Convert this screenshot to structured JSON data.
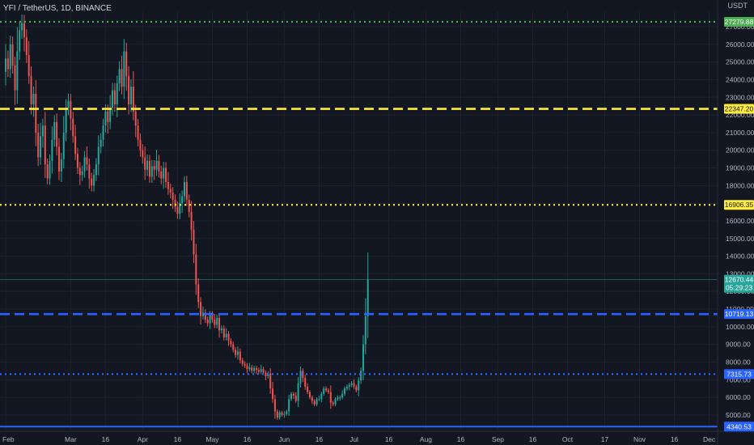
{
  "header": {
    "symbol_title": "YFI / TetherUS, 1D, BINANCE",
    "currency": "USDT"
  },
  "colors": {
    "background": "#131722",
    "grid": "#1e222d",
    "axis_text": "#b2b5be",
    "candle_up": "#26a69a",
    "candle_down": "#ef5350",
    "green_level": "#4caf50",
    "yellow_level": "#ffeb3b",
    "blue_level": "#2962ff"
  },
  "chart_data": {
    "type": "candlestick",
    "title": "YFI / TetherUS, 1D, BINANCE",
    "xlabel": "",
    "ylabel": "USDT",
    "ylim": [
      4400,
      28000
    ],
    "grid": true,
    "x_ticks": [
      "Feb",
      "Mar",
      "16",
      "Apr",
      "16",
      "May",
      "16",
      "Jun",
      "16",
      "Jul",
      "16",
      "Aug",
      "16",
      "Sep",
      "16",
      "Oct",
      "17",
      "Nov",
      "16",
      "Dec"
    ],
    "y_ticks": [
      {
        "value": 5000,
        "label": "5000.00"
      },
      {
        "value": 6000,
        "label": "6000.00"
      },
      {
        "value": 7000,
        "label": "7000.00"
      },
      {
        "value": 8000,
        "label": "8000.00"
      },
      {
        "value": 9000,
        "label": "9000.00"
      },
      {
        "value": 10000,
        "label": "10000.00"
      },
      {
        "value": 11000,
        "label": "11000.00"
      },
      {
        "value": 12000,
        "label": "12000.00"
      },
      {
        "value": 13000,
        "label": "13000.00"
      },
      {
        "value": 14000,
        "label": "14000.00"
      },
      {
        "value": 15000,
        "label": "15000.00"
      },
      {
        "value": 16000,
        "label": "16000.00"
      },
      {
        "value": 17000,
        "label": "17000.00"
      },
      {
        "value": 18000,
        "label": "18000.00"
      },
      {
        "value": 19000,
        "label": "19000.00"
      },
      {
        "value": 20000,
        "label": "20000.00"
      },
      {
        "value": 21000,
        "label": "21000.00"
      },
      {
        "value": 22000,
        "label": "22000.00"
      },
      {
        "value": 23000,
        "label": "23000.00"
      },
      {
        "value": 24000,
        "label": "24000.00"
      },
      {
        "value": 25000,
        "label": "25000.00"
      },
      {
        "value": 26000,
        "label": "26000.00"
      },
      {
        "value": 27000,
        "label": "27000.00"
      }
    ],
    "levels": [
      {
        "value": 27279.88,
        "label": "27279.88",
        "color": "#4caf50",
        "style": "dotted"
      },
      {
        "value": 22347.2,
        "label": "22347.20",
        "color": "#ffeb3b",
        "style": "dashed"
      },
      {
        "value": 16906.35,
        "label": "16906.35",
        "color": "#ffeb3b",
        "style": "dotted"
      },
      {
        "value": 10719.13,
        "label": "10719.13",
        "color": "#2962ff",
        "style": "dashed"
      },
      {
        "value": 7315.73,
        "label": "7315.73",
        "color": "#2962ff",
        "style": "dotted"
      },
      {
        "value": 4340.53,
        "label": "4340.53",
        "color": "#2962ff",
        "style": "solid"
      }
    ],
    "last_price": {
      "value": 12670.44,
      "label": "12670.44",
      "countdown": "05:29:23",
      "color": "#26a69a"
    },
    "candles": {
      "start_date": "2021-02-01",
      "closes": [
        25200,
        24600,
        26000,
        24800,
        23400,
        25600,
        26800,
        27200,
        26400,
        25400,
        24200,
        22600,
        23200,
        21000,
        19600,
        20800,
        21400,
        19200,
        18400,
        19400,
        20600,
        21600,
        20200,
        18800,
        19500,
        21000,
        22400,
        22800,
        21800,
        20800,
        19800,
        19000,
        18600,
        18800,
        19600,
        19200,
        18400,
        18000,
        18600,
        19200,
        20200,
        20600,
        21400,
        22200,
        21600,
        22400,
        23400,
        22600,
        23800,
        24600,
        23600,
        25600,
        24200,
        22600,
        23600,
        22200,
        21400,
        20600,
        20000,
        19600,
        18900,
        19400,
        18500,
        19100,
        18900,
        19400,
        18800,
        18400,
        19000,
        18200,
        17800,
        17600,
        17200,
        16800,
        16400,
        17000,
        17400,
        18200,
        17200,
        16500,
        15500,
        14100,
        12400,
        11400,
        10600,
        10800,
        10400,
        10200,
        10700,
        10400,
        10100,
        10500,
        9800,
        9900,
        9400,
        9600,
        9200,
        9000,
        8700,
        8400,
        8600,
        8100,
        7900,
        7800,
        7600,
        7700,
        7500,
        7650,
        7550,
        7450,
        7600,
        7400,
        7200,
        7350,
        6500,
        5900,
        5200,
        4850,
        5150,
        5000,
        5050,
        5200,
        5900,
        6200,
        6100,
        5800,
        6800,
        7500,
        7100,
        6600,
        6300,
        6000,
        5800,
        5600,
        5900,
        5900,
        6200,
        6500,
        6400,
        6300,
        5700,
        5600,
        5900,
        6000,
        6000,
        6200,
        6500,
        6600,
        6700,
        6800,
        6600,
        6400,
        6950,
        7500,
        9000,
        10600,
        12670.44
      ]
    }
  }
}
